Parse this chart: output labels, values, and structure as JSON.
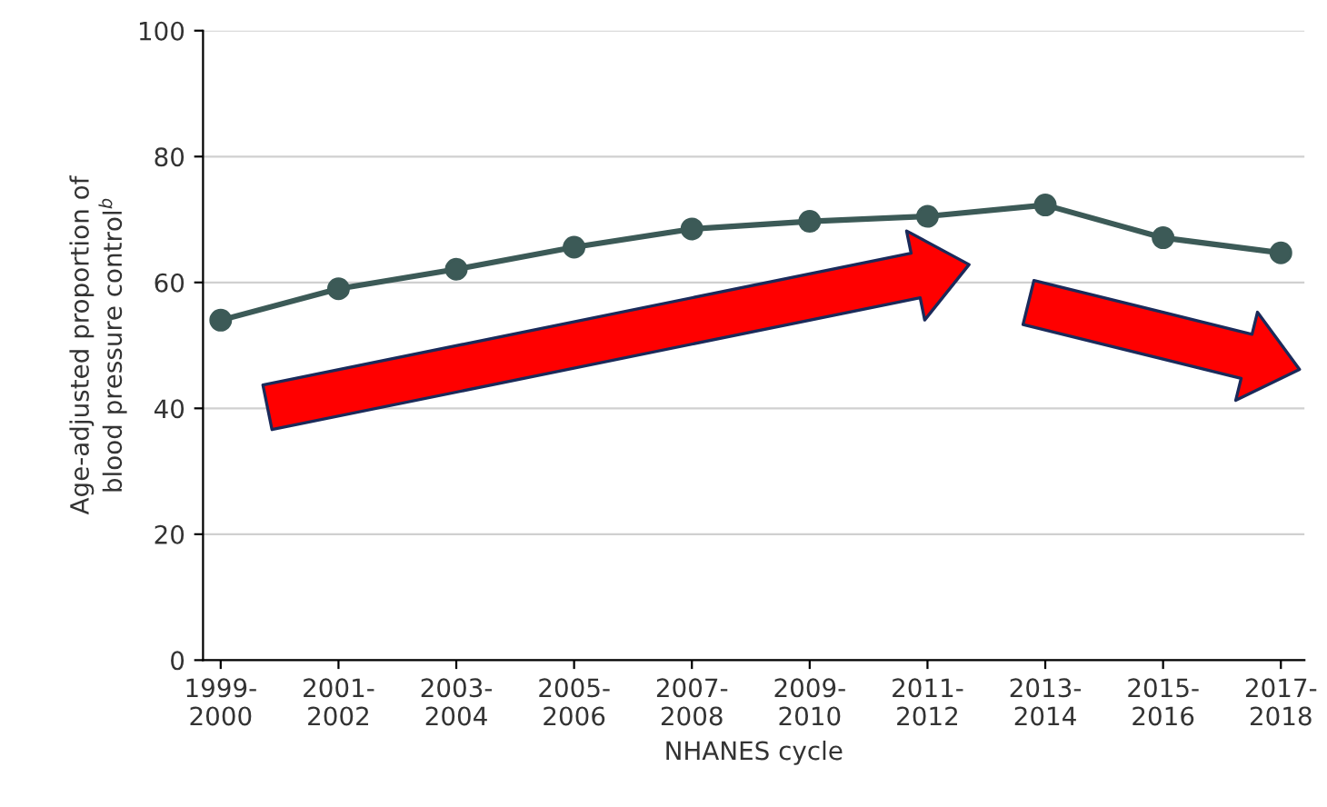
{
  "chart_data": {
    "type": "line",
    "xlabel": "NHANES cycle",
    "ylabel": "Age-adjusted proportion of\nblood pressure control$^{b}$",
    "categories": [
      "1999-\n2000",
      "2001-\n2002",
      "2003-\n2004",
      "2005-\n2006",
      "2007-\n2008",
      "2009-\n2010",
      "2011-\n2012",
      "2013-\n2014",
      "2015-\n2016",
      "2017-\n2018"
    ],
    "series": [
      {
        "color": "#3c5a57",
        "values": [
          54.0,
          59.0,
          62.1,
          65.6,
          68.5,
          69.7,
          70.5,
          72.3,
          67.1,
          64.7
        ]
      }
    ],
    "ylim": [
      0,
      100
    ],
    "yticks": [
      0,
      20,
      40,
      60,
      80,
      100
    ],
    "grid": "y",
    "marker": "circle",
    "line_style": "solid"
  }
}
